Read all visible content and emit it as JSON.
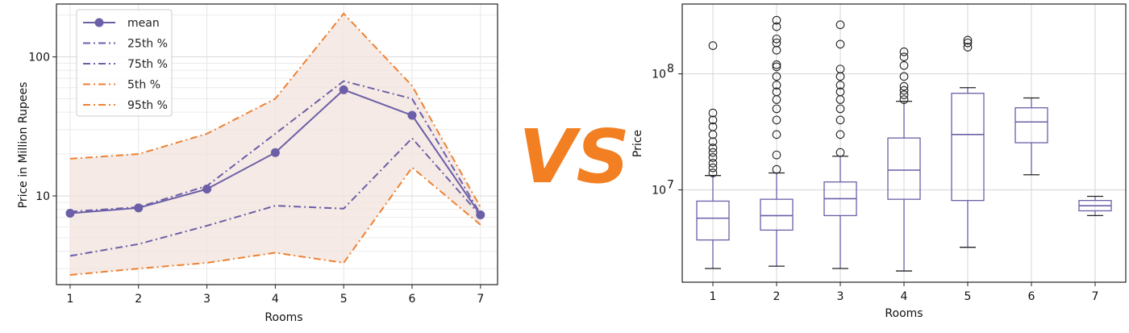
{
  "chart_data": [
    {
      "type": "line",
      "title": "",
      "xlabel": "Rooms",
      "ylabel": "Price in Million Rupees",
      "yscale": "log",
      "ylim": [
        2.3,
        240
      ],
      "xlim": [
        0.8,
        7.25
      ],
      "x_ticks": [
        "1",
        "2",
        "3",
        "4",
        "5",
        "6",
        "7"
      ],
      "y_ticks": [
        "10",
        "100"
      ],
      "grid": true,
      "legend": "top-left",
      "x": [
        1,
        2,
        3,
        4,
        5,
        6,
        7
      ],
      "series": [
        {
          "name": "mean",
          "values": [
            7.5,
            8.2,
            11.2,
            20.5,
            58,
            38,
            7.3
          ],
          "color": "#6c5fa7",
          "style": "solid-marker"
        },
        {
          "name": "25th %",
          "values": [
            3.7,
            4.5,
            6.1,
            8.5,
            8.1,
            26,
            7.2
          ],
          "color": "#6c5fa7",
          "style": "dashdot"
        },
        {
          "name": "75th %",
          "values": [
            7.7,
            8.3,
            11.8,
            28,
            67,
            50,
            7.4
          ],
          "color": "#6c5fa7",
          "style": "dashdot"
        },
        {
          "name": "5th %",
          "values": [
            2.7,
            3.0,
            3.3,
            3.9,
            3.3,
            16,
            6.2
          ],
          "color": "#ee8133",
          "style": "dashdot"
        },
        {
          "name": "95th %",
          "values": [
            18.5,
            20,
            28,
            50,
            205,
            62,
            8.3
          ],
          "color": "#ee8133",
          "style": "dashdot"
        }
      ],
      "fill_between": [
        "5th %",
        "95th %"
      ],
      "fill_color": "#f1e3dc"
    },
    {
      "type": "box",
      "title": "",
      "xlabel": "Rooms",
      "ylabel": "Price",
      "yscale": "log",
      "ylim": [
        1600000,
        400000000
      ],
      "x_ticks": [
        "1",
        "2",
        "3",
        "4",
        "5",
        "6",
        "7"
      ],
      "y_ticks": [
        "10^7",
        "10^8"
      ],
      "grid": true,
      "color": "#6c5fa7",
      "boxes": [
        {
          "category": "1",
          "whisker_low": 2100000,
          "q1": 3700000,
          "median": 5700000,
          "q3": 8000000,
          "whisker_high": 13300000,
          "outliers": [
            14000000,
            15500000,
            17000000,
            19000000,
            21000000,
            23000000,
            26000000,
            30000000,
            35000000,
            40000000,
            46000000,
            175000000
          ]
        },
        {
          "category": "2",
          "whisker_low": 2200000,
          "q1": 4500000,
          "median": 6000000,
          "q3": 8300000,
          "whisker_high": 14000000,
          "outliers": [
            15000000,
            20000000,
            30000000,
            40000000,
            50000000,
            60000000,
            70000000,
            80000000,
            95000000,
            115000000,
            120000000,
            160000000,
            185000000,
            200000000,
            255000000,
            290000000
          ]
        },
        {
          "category": "3",
          "whisker_low": 2100000,
          "q1": 6000000,
          "median": 8400000,
          "q3": 11700000,
          "whisker_high": 19500000,
          "outliers": [
            21000000,
            30000000,
            40000000,
            50000000,
            60000000,
            70000000,
            80000000,
            95000000,
            110000000,
            180000000,
            265000000
          ]
        },
        {
          "category": "4",
          "whisker_low": 2000000,
          "q1": 8300000,
          "median": 14800000,
          "q3": 28000000,
          "whisker_high": 58000000,
          "outliers": [
            60000000,
            66000000,
            72000000,
            78000000,
            95000000,
            118000000,
            140000000,
            155000000
          ]
        },
        {
          "category": "5",
          "whisker_low": 3200000,
          "q1": 8100000,
          "median": 30000000,
          "q3": 68000000,
          "whisker_high": 76000000,
          "outliers": [
            170000000,
            185000000,
            195000000
          ]
        },
        {
          "category": "6",
          "whisker_low": 13500000,
          "q1": 25500000,
          "median": 38500000,
          "q3": 51000000,
          "whisker_high": 62000000,
          "outliers": []
        },
        {
          "category": "7",
          "whisker_low": 6000000,
          "q1": 6600000,
          "median": 7300000,
          "q3": 8100000,
          "whisker_high": 8800000,
          "outliers": []
        }
      ]
    }
  ],
  "vs_label": "VS"
}
